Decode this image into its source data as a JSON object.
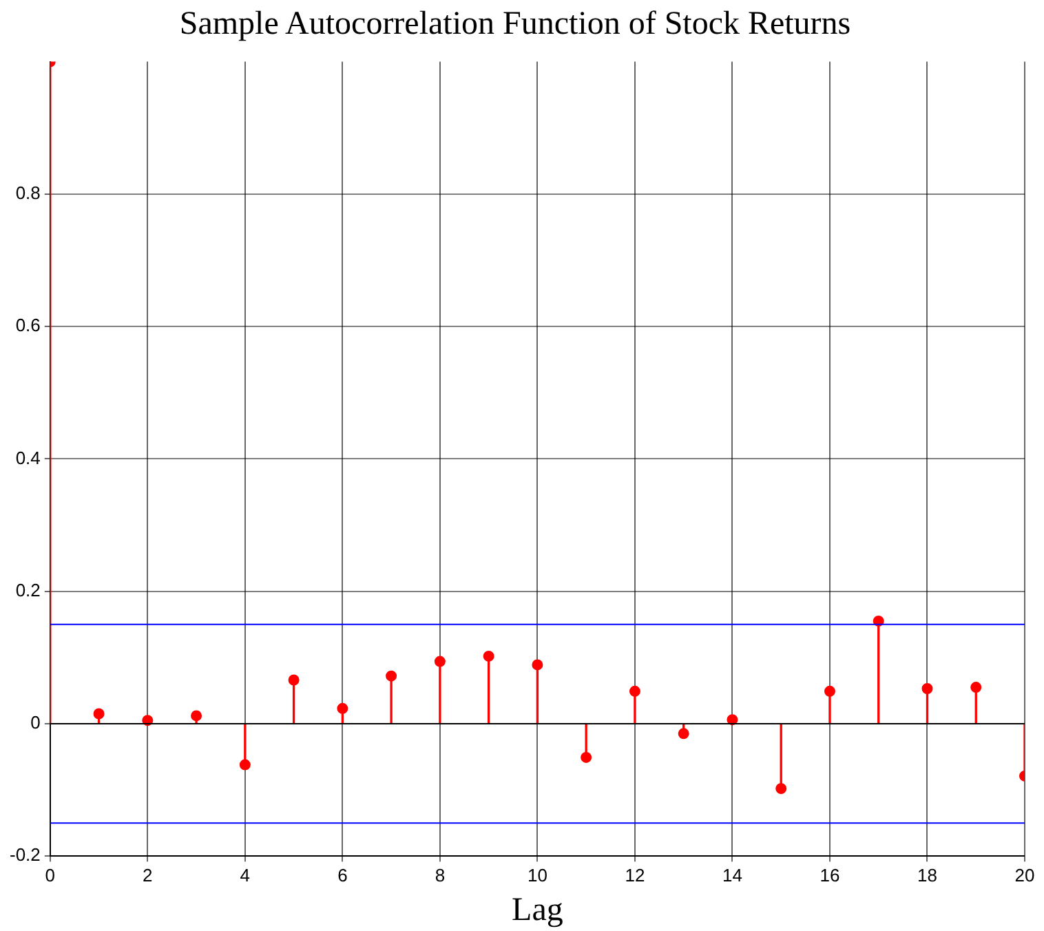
{
  "chart_data": {
    "type": "lollipop",
    "title": "Sample Autocorrelation Function of Stock Returns",
    "xlabel": "Lag",
    "x": [
      0,
      1,
      2,
      3,
      4,
      5,
      6,
      7,
      8,
      9,
      10,
      11,
      12,
      13,
      14,
      15,
      16,
      17,
      18,
      19,
      20
    ],
    "values": [
      1,
      0.015,
      0.005,
      0.012,
      -0.062,
      0.066,
      0.023,
      0.072,
      0.094,
      0.102,
      0.089,
      -0.051,
      0.049,
      -0.015,
      0.006,
      -0.098,
      0.049,
      0.155,
      0.053,
      0.055,
      -0.079
    ],
    "color": "#ff0000",
    "marker": "circle",
    "xlim": [
      0,
      20
    ],
    "xticks": [
      0,
      2,
      4,
      6,
      8,
      10,
      12,
      14,
      16,
      18,
      20
    ],
    "ylim": [
      -0.2,
      1
    ],
    "yticks": [
      -0.2,
      0,
      0.2,
      0.4,
      0.6,
      0.8
    ],
    "ref_lines": [
      {
        "axis": "y",
        "value": 0.15,
        "color": "#0000ff"
      },
      {
        "axis": "y",
        "value": -0.15,
        "color": "#0000ff"
      },
      {
        "axis": "y",
        "value": 0,
        "color": "#000000"
      }
    ],
    "grid": true,
    "legend": false
  }
}
